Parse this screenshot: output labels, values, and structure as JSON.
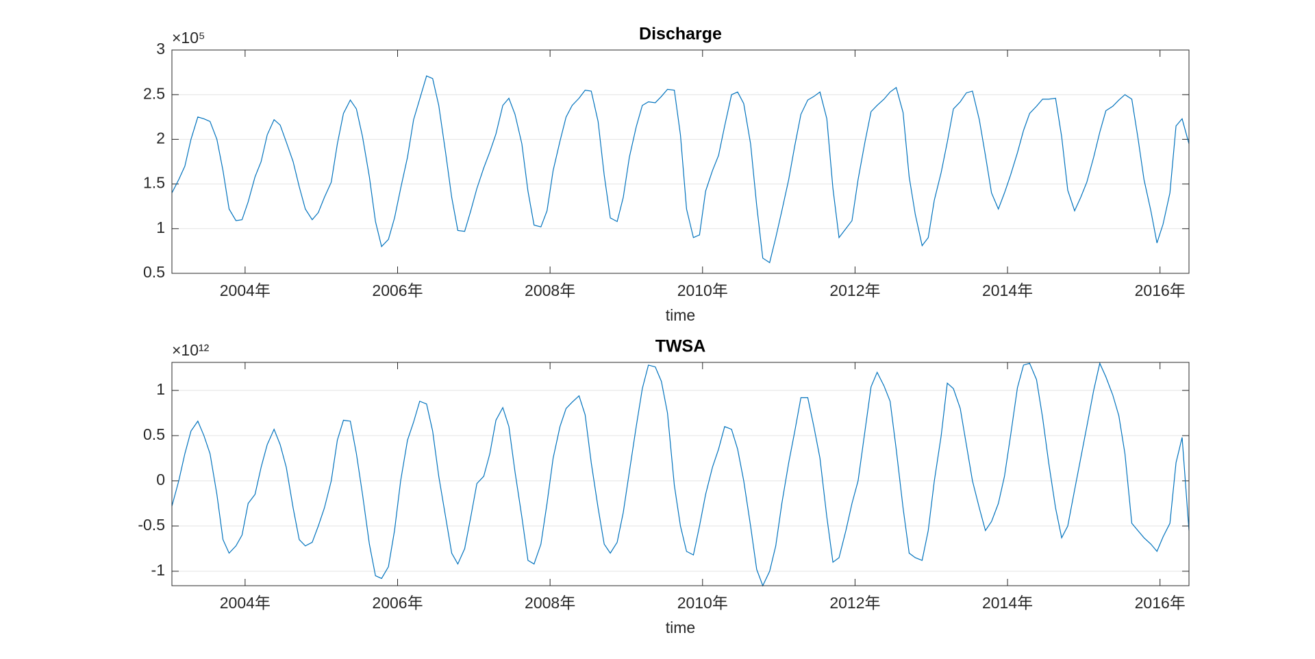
{
  "chart_data": [
    {
      "type": "line",
      "title": "Discharge",
      "xlabel": "time",
      "y_multiplier": "×10⁵",
      "xlim": [
        2003.04,
        2016.38
      ],
      "ylim": [
        0.5,
        3
      ],
      "xticks": [
        {
          "value": 2004,
          "label": "2004年"
        },
        {
          "value": 2006,
          "label": "2006年"
        },
        {
          "value": 2008,
          "label": "2008年"
        },
        {
          "value": 2010,
          "label": "2010年"
        },
        {
          "value": 2012,
          "label": "2012年"
        },
        {
          "value": 2014,
          "label": "2014年"
        },
        {
          "value": 2016,
          "label": "2016年"
        }
      ],
      "yticks": [
        0.5,
        1,
        1.5,
        2,
        2.5,
        3
      ],
      "grid": true,
      "x": [
        2003.04,
        2003.13,
        2003.21,
        2003.29,
        2003.38,
        2003.46,
        2003.54,
        2003.63,
        2003.71,
        2003.79,
        2003.88,
        2003.96,
        2004.04,
        2004.13,
        2004.21,
        2004.29,
        2004.38,
        2004.46,
        2004.54,
        2004.63,
        2004.71,
        2004.79,
        2004.88,
        2004.96,
        2005.04,
        2005.13,
        2005.21,
        2005.29,
        2005.38,
        2005.46,
        2005.54,
        2005.63,
        2005.71,
        2005.79,
        2005.88,
        2005.96,
        2006.04,
        2006.13,
        2006.21,
        2006.29,
        2006.38,
        2006.46,
        2006.54,
        2006.63,
        2006.71,
        2006.79,
        2006.88,
        2006.96,
        2007.04,
        2007.13,
        2007.21,
        2007.29,
        2007.38,
        2007.46,
        2007.54,
        2007.63,
        2007.71,
        2007.79,
        2007.88,
        2007.96,
        2008.04,
        2008.13,
        2008.21,
        2008.29,
        2008.38,
        2008.46,
        2008.54,
        2008.63,
        2008.71,
        2008.79,
        2008.88,
        2008.96,
        2009.04,
        2009.13,
        2009.21,
        2009.29,
        2009.38,
        2009.46,
        2009.54,
        2009.63,
        2009.71,
        2009.79,
        2009.88,
        2009.96,
        2010.04,
        2010.13,
        2010.21,
        2010.29,
        2010.38,
        2010.46,
        2010.54,
        2010.63,
        2010.71,
        2010.79,
        2010.88,
        2010.96,
        2011.04,
        2011.13,
        2011.21,
        2011.29,
        2011.38,
        2011.46,
        2011.54,
        2011.63,
        2011.71,
        2011.79,
        2011.88,
        2011.96,
        2012.04,
        2012.13,
        2012.21,
        2012.29,
        2012.38,
        2012.46,
        2012.54,
        2012.63,
        2012.71,
        2012.79,
        2012.88,
        2012.96,
        2013.04,
        2013.13,
        2013.21,
        2013.29,
        2013.38,
        2013.46,
        2013.54,
        2013.63,
        2013.71,
        2013.79,
        2013.88,
        2013.96,
        2014.04,
        2014.13,
        2014.21,
        2014.29,
        2014.38,
        2014.46,
        2014.54,
        2014.63,
        2014.71,
        2014.79,
        2014.88,
        2014.96,
        2015.04,
        2015.13,
        2015.21,
        2015.29,
        2015.38,
        2015.46,
        2015.54,
        2015.63,
        2015.71,
        2015.79,
        2015.88,
        2015.96,
        2016.04,
        2016.13,
        2016.21,
        2016.29,
        2016.38
      ],
      "series": [
        {
          "name": "Discharge",
          "color": "#0072bd",
          "values": [
            1.4,
            1.55,
            1.7,
            2.0,
            2.25,
            2.23,
            2.2,
            2.0,
            1.65,
            1.22,
            1.09,
            1.1,
            1.3,
            1.58,
            1.75,
            2.05,
            2.22,
            2.16,
            1.97,
            1.75,
            1.47,
            1.22,
            1.1,
            1.18,
            1.35,
            1.52,
            1.95,
            2.29,
            2.44,
            2.34,
            2.03,
            1.58,
            1.08,
            0.8,
            0.88,
            1.12,
            1.45,
            1.8,
            2.22,
            2.45,
            2.71,
            2.68,
            2.38,
            1.85,
            1.35,
            0.98,
            0.97,
            1.2,
            1.45,
            1.68,
            1.86,
            2.06,
            2.38,
            2.46,
            2.28,
            1.95,
            1.42,
            1.04,
            1.02,
            1.2,
            1.65,
            1.98,
            2.25,
            2.38,
            2.46,
            2.55,
            2.54,
            2.2,
            1.6,
            1.12,
            1.08,
            1.35,
            1.8,
            2.14,
            2.38,
            2.42,
            2.41,
            2.48,
            2.56,
            2.55,
            2.05,
            1.22,
            0.9,
            0.93,
            1.42,
            1.65,
            1.82,
            2.15,
            2.5,
            2.53,
            2.4,
            1.95,
            1.26,
            0.67,
            0.62,
            0.9,
            1.2,
            1.55,
            1.93,
            2.28,
            2.44,
            2.48,
            2.53,
            2.23,
            1.45,
            0.9,
            1.0,
            1.09,
            1.55,
            1.97,
            2.31,
            2.38,
            2.45,
            2.53,
            2.58,
            2.3,
            1.58,
            1.16,
            0.81,
            0.9,
            1.32,
            1.63,
            1.97,
            2.34,
            2.42,
            2.52,
            2.54,
            2.22,
            1.82,
            1.4,
            1.22,
            1.4,
            1.6,
            1.85,
            2.1,
            2.29,
            2.37,
            2.45,
            2.45,
            2.46,
            2.03,
            1.43,
            1.2,
            1.35,
            1.52,
            1.8,
            2.08,
            2.32,
            2.37,
            2.44,
            2.5,
            2.45,
            2.02,
            1.55,
            1.2,
            0.84,
            1.05,
            1.4,
            2.15,
            2.23,
            1.95
          ]
        }
      ]
    },
    {
      "type": "line",
      "title": "TWSA",
      "xlabel": "time",
      "y_multiplier": "×10¹²",
      "xlim": [
        2003.04,
        2016.38
      ],
      "ylim": [
        -1.16,
        1.31
      ],
      "xticks": [
        {
          "value": 2004,
          "label": "2004年"
        },
        {
          "value": 2006,
          "label": "2006年"
        },
        {
          "value": 2008,
          "label": "2008年"
        },
        {
          "value": 2010,
          "label": "2010年"
        },
        {
          "value": 2012,
          "label": "2012年"
        },
        {
          "value": 2014,
          "label": "2014年"
        },
        {
          "value": 2016,
          "label": "2016年"
        }
      ],
      "yticks": [
        -1,
        -0.5,
        0,
        0.5,
        1
      ],
      "grid": true,
      "x": [
        2003.04,
        2003.13,
        2003.21,
        2003.29,
        2003.38,
        2003.46,
        2003.54,
        2003.63,
        2003.71,
        2003.79,
        2003.88,
        2003.96,
        2004.04,
        2004.13,
        2004.21,
        2004.29,
        2004.38,
        2004.46,
        2004.54,
        2004.63,
        2004.71,
        2004.79,
        2004.88,
        2004.96,
        2005.04,
        2005.13,
        2005.21,
        2005.29,
        2005.38,
        2005.46,
        2005.54,
        2005.63,
        2005.71,
        2005.79,
        2005.88,
        2005.96,
        2006.04,
        2006.13,
        2006.21,
        2006.29,
        2006.38,
        2006.46,
        2006.54,
        2006.63,
        2006.71,
        2006.79,
        2006.88,
        2006.96,
        2007.04,
        2007.13,
        2007.21,
        2007.29,
        2007.38,
        2007.46,
        2007.54,
        2007.63,
        2007.71,
        2007.79,
        2007.88,
        2007.96,
        2008.04,
        2008.13,
        2008.21,
        2008.29,
        2008.38,
        2008.46,
        2008.54,
        2008.63,
        2008.71,
        2008.79,
        2008.88,
        2008.96,
        2009.04,
        2009.13,
        2009.21,
        2009.29,
        2009.38,
        2009.46,
        2009.54,
        2009.63,
        2009.71,
        2009.79,
        2009.88,
        2009.96,
        2010.04,
        2010.13,
        2010.21,
        2010.29,
        2010.38,
        2010.46,
        2010.54,
        2010.63,
        2010.71,
        2010.79,
        2010.88,
        2010.96,
        2011.04,
        2011.13,
        2011.21,
        2011.29,
        2011.38,
        2011.46,
        2011.54,
        2011.63,
        2011.71,
        2011.79,
        2011.88,
        2011.96,
        2012.04,
        2012.13,
        2012.21,
        2012.29,
        2012.38,
        2012.46,
        2012.54,
        2012.63,
        2012.71,
        2012.79,
        2012.88,
        2012.96,
        2013.04,
        2013.13,
        2013.21,
        2013.29,
        2013.38,
        2013.46,
        2013.54,
        2013.63,
        2013.71,
        2013.79,
        2013.88,
        2013.96,
        2014.04,
        2014.13,
        2014.21,
        2014.29,
        2014.38,
        2014.46,
        2014.54,
        2014.63,
        2014.71,
        2014.79,
        2014.88,
        2014.96,
        2015.04,
        2015.13,
        2015.21,
        2015.29,
        2015.38,
        2015.46,
        2015.54,
        2015.63,
        2015.71,
        2015.79,
        2015.88,
        2015.96,
        2016.04,
        2016.13,
        2016.21,
        2016.29,
        2016.38
      ],
      "series": [
        {
          "name": "TWSA",
          "color": "#0072bd",
          "values": [
            -0.28,
            0.0,
            0.3,
            0.55,
            0.66,
            0.5,
            0.3,
            -0.15,
            -0.65,
            -0.8,
            -0.72,
            -0.6,
            -0.25,
            -0.15,
            0.15,
            0.4,
            0.57,
            0.4,
            0.15,
            -0.3,
            -0.65,
            -0.72,
            -0.68,
            -0.5,
            -0.3,
            0.0,
            0.45,
            0.67,
            0.66,
            0.3,
            -0.15,
            -0.7,
            -1.05,
            -1.08,
            -0.95,
            -0.55,
            0.0,
            0.45,
            0.65,
            0.88,
            0.85,
            0.55,
            0.05,
            -0.4,
            -0.8,
            -0.92,
            -0.75,
            -0.4,
            -0.03,
            0.05,
            0.3,
            0.67,
            0.81,
            0.6,
            0.1,
            -0.4,
            -0.88,
            -0.92,
            -0.7,
            -0.25,
            0.25,
            0.6,
            0.8,
            0.87,
            0.94,
            0.73,
            0.2,
            -0.3,
            -0.7,
            -0.8,
            -0.68,
            -0.35,
            0.1,
            0.6,
            1.02,
            1.28,
            1.26,
            1.1,
            0.75,
            -0.05,
            -0.5,
            -0.78,
            -0.82,
            -0.5,
            -0.15,
            0.15,
            0.35,
            0.6,
            0.57,
            0.35,
            0.0,
            -0.5,
            -0.98,
            -1.16,
            -1.0,
            -0.72,
            -0.25,
            0.2,
            0.55,
            0.92,
            0.92,
            0.6,
            0.25,
            -0.4,
            -0.9,
            -0.85,
            -0.55,
            -0.25,
            0.0,
            0.55,
            1.04,
            1.2,
            1.05,
            0.88,
            0.35,
            -0.3,
            -0.8,
            -0.85,
            -0.88,
            -0.55,
            0.0,
            0.5,
            1.08,
            1.02,
            0.8,
            0.4,
            0.0,
            -0.3,
            -0.55,
            -0.45,
            -0.25,
            0.05,
            0.5,
            1.03,
            1.28,
            1.3,
            1.12,
            0.7,
            0.2,
            -0.3,
            -0.63,
            -0.5,
            -0.1,
            0.25,
            0.6,
            1.0,
            1.3,
            1.15,
            0.95,
            0.72,
            0.3,
            -0.47,
            -0.55,
            -0.63,
            -0.7,
            -0.78,
            -0.62,
            -0.47,
            0.2,
            0.48,
            -0.55
          ]
        }
      ]
    }
  ]
}
